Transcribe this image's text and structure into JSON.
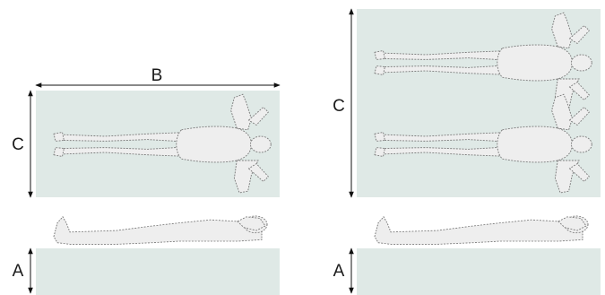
{
  "labels": {
    "left_width": "B",
    "left_length": "C",
    "left_height": "A",
    "right_length": "C",
    "right_height": "A"
  },
  "colors": {
    "surface": "#dfe9e6",
    "figure_fill": "#eeeeee",
    "figure_stroke": "#7a7a7a",
    "seam": "#555555",
    "arrow": "#111111",
    "text": "#1a1a1a"
  }
}
